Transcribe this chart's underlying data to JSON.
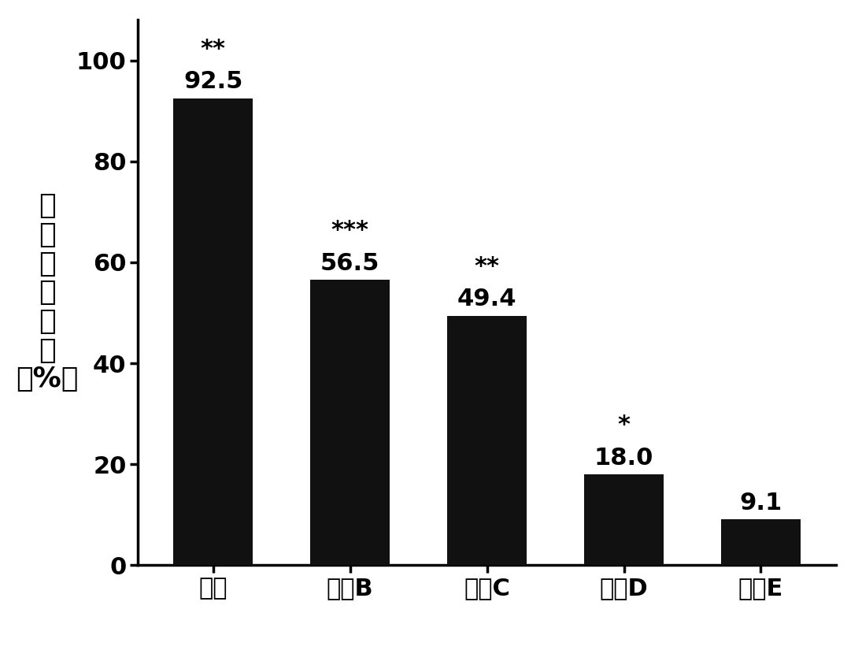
{
  "categories": [
    "阳性",
    "厂商B",
    "厂商C",
    "厂商D",
    "厂商E"
  ],
  "values": [
    92.5,
    56.5,
    49.4,
    18.0,
    9.1
  ],
  "bar_color": "#111111",
  "significance": [
    "**",
    "***",
    "**",
    "*",
    ""
  ],
  "ylabel_chars": [
    "睡",
    "眠",
    "改",
    "善",
    "作",
    "用",
    "（%）"
  ],
  "ylim": [
    0,
    108
  ],
  "yticks": [
    0,
    20,
    40,
    60,
    80,
    100
  ],
  "bar_width": 0.58,
  "value_fontsize": 22,
  "star_fontsize": 22,
  "ylabel_fontsize": 26,
  "xtick_fontsize": 22,
  "ytick_fontsize": 22,
  "background_color": "#ffffff"
}
